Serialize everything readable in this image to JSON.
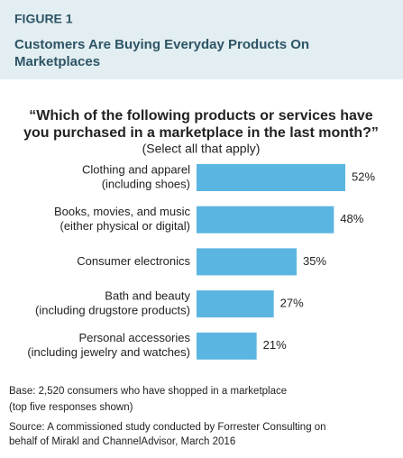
{
  "chart_data": {
    "type": "bar",
    "figure_label": "FIGURE 1",
    "title": [
      "Customers Are Buying Everyday Products On",
      "Marketplaces"
    ],
    "question": [
      "“Which of the following products or services have",
      "you purchased in a marketplace in the last month?”"
    ],
    "subtitle": "(Select all that apply)",
    "categories": [
      [
        "Clothing and apparel",
        "(including shoes)"
      ],
      [
        "Books, movies, and music",
        "(either physical or digital)"
      ],
      [
        "Consumer electronics"
      ],
      [
        "Bath and beauty",
        "(including drugstore products)"
      ],
      [
        "Personal accessories",
        "(including jewelry and watches)"
      ]
    ],
    "values": [
      52,
      48,
      35,
      27,
      21
    ],
    "value_labels": [
      "52%",
      "48%",
      "35%",
      "27%",
      "21%"
    ],
    "color": "#5bb5e1",
    "base": [
      "Base: 2,520 consumers who have shopped in a marketplace",
      "(top five responses shown)"
    ],
    "source": [
      "Source: A commissioned study conducted by Forrester Consulting on",
      "behalf of Mirakl and ChannelAdvisor, March 2016"
    ]
  }
}
